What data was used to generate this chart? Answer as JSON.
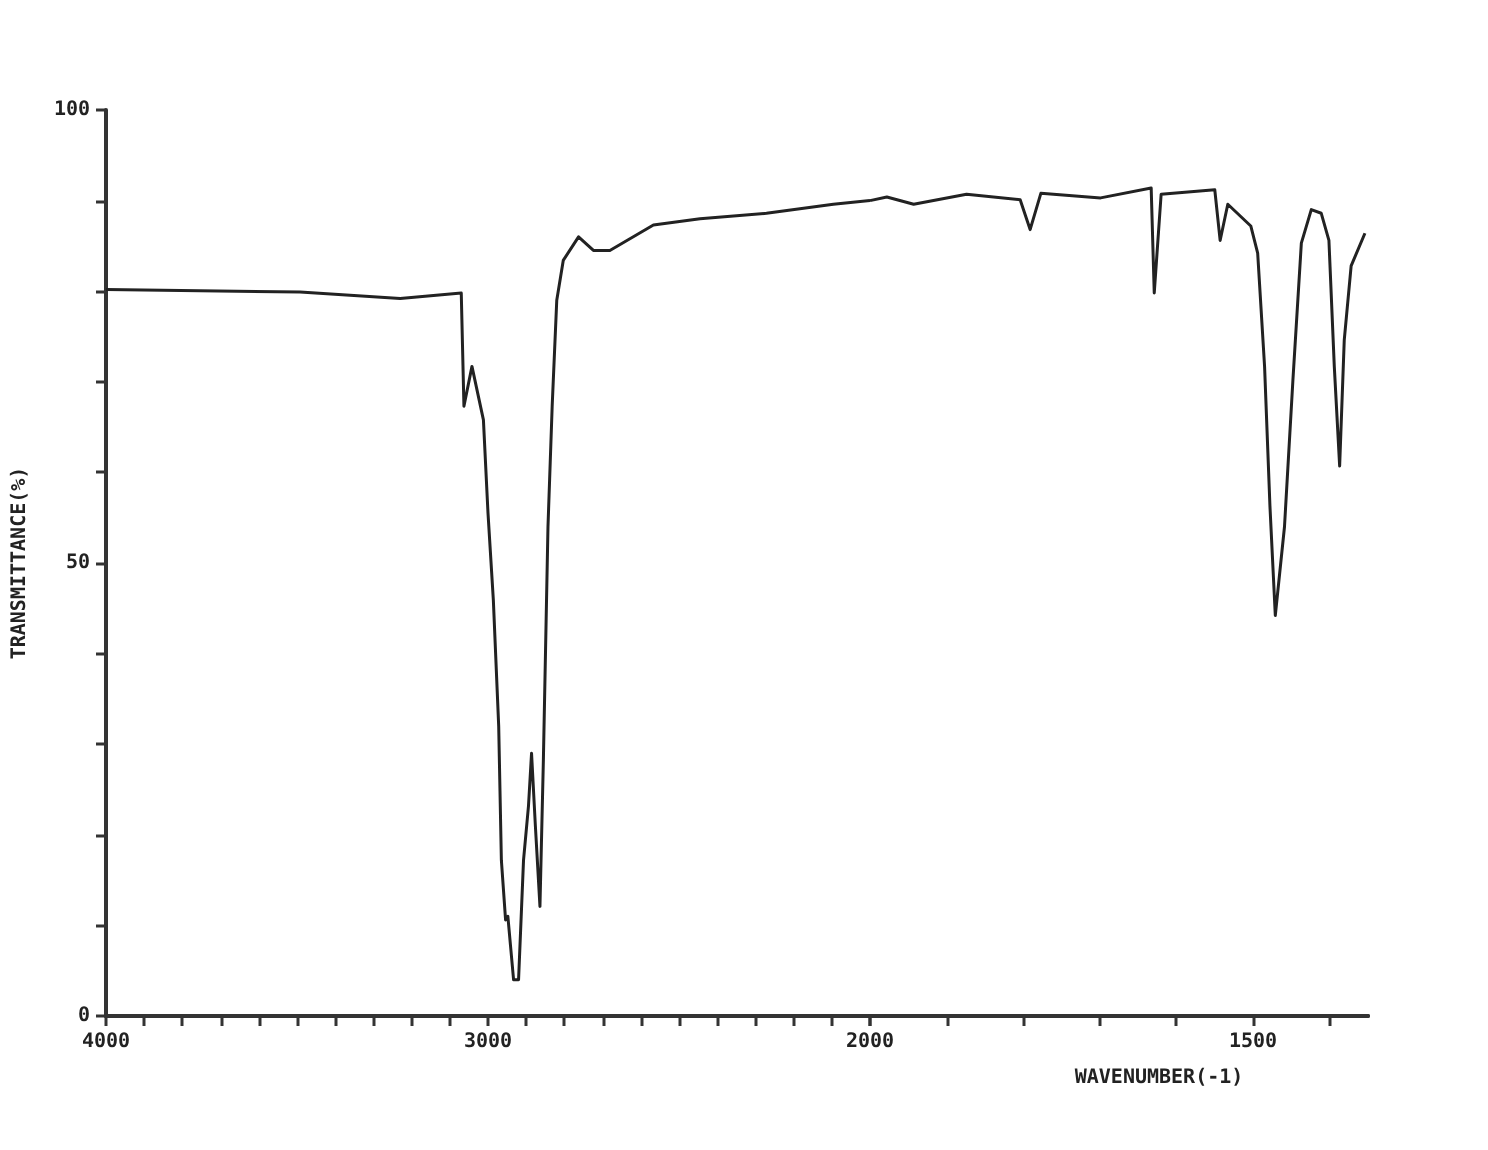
{
  "chart_data": [
    {
      "type": "line",
      "ylabel": "TRANSMITTANCE(%)",
      "tick_labels": true,
      "x": [
        4000,
        3492,
        3230,
        3070,
        3063,
        3042,
        3012,
        3000,
        2986,
        2972,
        2965,
        2954,
        2948,
        2933,
        2920,
        2907,
        2894,
        2886,
        2876,
        2864,
        2855,
        2843,
        2832,
        2820,
        2803,
        2763,
        2724,
        2681,
        2567,
        2445,
        2271,
        2096,
        2000
      ],
      "series": [
        {
          "color": "#222222",
          "values": [
            80.2,
            79.9,
            79.2,
            79.8,
            67.3,
            71.7,
            65.8,
            55.5,
            45.9,
            32,
            17.2,
            10.6,
            11,
            4,
            4,
            17.2,
            23.2,
            29,
            21,
            12.1,
            28.3,
            54,
            67.3,
            79,
            83.4,
            86,
            84.5,
            84.5,
            87.3,
            88,
            88.6,
            89.6,
            90
          ]
        }
      ],
      "xlim": [
        4000,
        2000
      ],
      "xticks": [
        4000,
        {
          "value": 3900,
          "label": null
        },
        {
          "value": 3800,
          "label": null
        },
        {
          "value": 3700,
          "label": null
        },
        {
          "value": 3600,
          "label": null
        },
        {
          "value": 3500,
          "label": null
        },
        {
          "value": 3400,
          "label": null
        },
        {
          "value": 3300,
          "label": null
        },
        {
          "value": 3200,
          "label": null
        },
        {
          "value": 3100,
          "label": null
        },
        3000,
        {
          "value": 2900,
          "label": null
        },
        {
          "value": 2800,
          "label": null
        },
        {
          "value": 2700,
          "label": null
        },
        {
          "value": 2600,
          "label": null
        },
        {
          "value": 2500,
          "label": null
        },
        {
          "value": 2400,
          "label": null
        },
        {
          "value": 2300,
          "label": null
        },
        {
          "value": 2200,
          "label": null
        },
        {
          "value": 2100,
          "label": null
        },
        {
          "value": 2000,
          "label": null
        }
      ],
      "ylim": [
        0,
        100
      ],
      "yticks": [
        0,
        {
          "value": 10,
          "label": null
        },
        {
          "value": 20,
          "label": null
        },
        {
          "value": 30,
          "label": null
        },
        {
          "value": 40,
          "label": null
        },
        50,
        {
          "value": 60,
          "label": null
        },
        {
          "value": 70,
          "label": null
        },
        {
          "value": 80,
          "label": null
        },
        {
          "value": 90,
          "label": null
        },
        100
      ],
      "marker": "none",
      "line_style": "solid"
    },
    {
      "type": "line",
      "xlabel": "WAVENUMBER(-1)",
      "tick_labels": "x",
      "x": [
        2000,
        1978,
        1943,
        1874,
        1804,
        1791,
        1777,
        1699,
        1633,
        1629,
        1620,
        1550,
        1543,
        1533,
        1503,
        1494,
        1485,
        1478,
        1471,
        1459,
        1448,
        1437,
        1424,
        1411,
        1401,
        1394,
        1387,
        1381,
        1372,
        1354
      ],
      "series": [
        {
          "color": "#222222",
          "values": [
            90,
            90.4,
            89.6,
            90.7,
            90.1,
            86.8,
            90.8,
            90.3,
            91.4,
            79.8,
            90.7,
            91.2,
            85.6,
            89.6,
            87.2,
            84.2,
            71.7,
            56.3,
            44.2,
            54,
            70.2,
            85.3,
            89,
            88.6,
            85.6,
            71.7,
            60.7,
            74.6,
            82.8,
            86.4
          ]
        }
      ],
      "xlim": [
        2000,
        1350
      ],
      "xticks": [
        2000,
        {
          "value": 1900,
          "label": null
        },
        {
          "value": 1800,
          "label": null
        },
        {
          "value": 1700,
          "label": null
        },
        {
          "value": 1600,
          "label": null
        },
        1500,
        {
          "value": 1400,
          "label": null
        }
      ],
      "ylim": [
        0,
        100
      ],
      "marker": "none",
      "line_style": "solid"
    }
  ]
}
